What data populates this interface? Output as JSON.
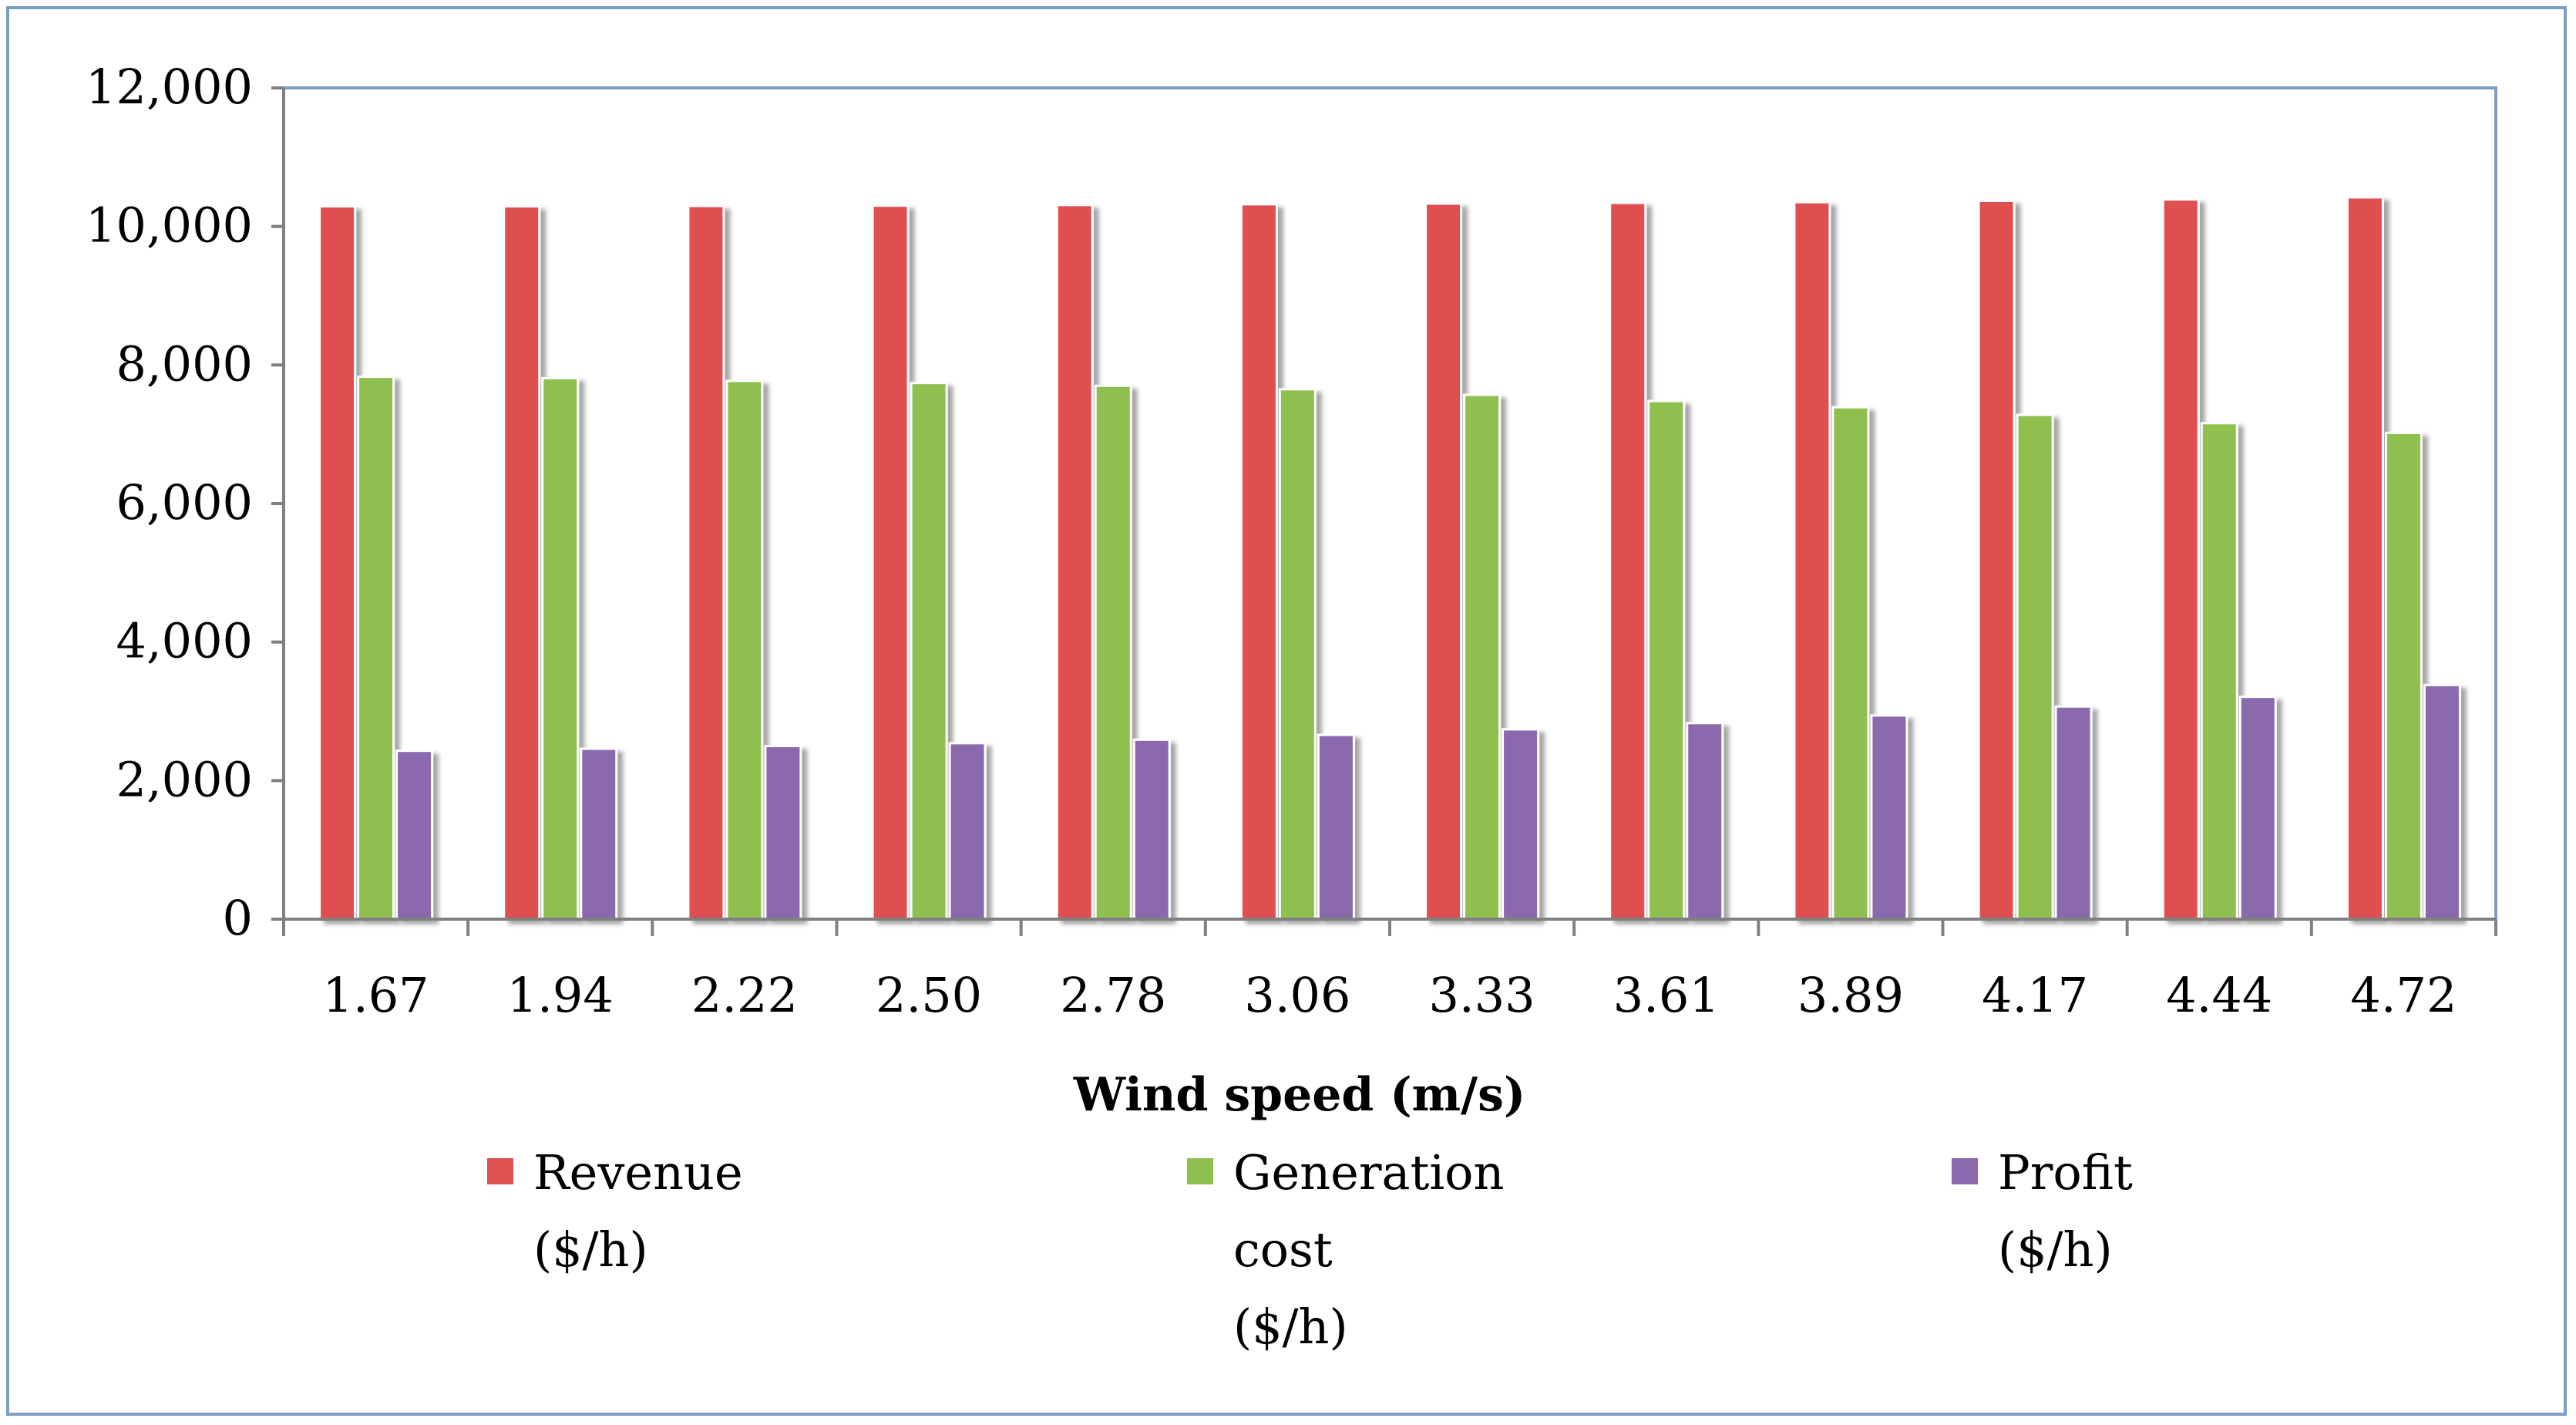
{
  "chart_data": {
    "type": "bar",
    "title": "",
    "xlabel": "Wind speed (m/s)",
    "ylabel": "",
    "ylim": [
      0,
      12000
    ],
    "yticks": [
      0,
      2000,
      4000,
      6000,
      8000,
      10000,
      12000
    ],
    "ytick_labels": [
      "0",
      "2,000",
      "4,000",
      "6,000",
      "8,000",
      "10,000",
      "12,000"
    ],
    "categories": [
      "1.67",
      "1.94",
      "2.22",
      "2.50",
      "2.78",
      "3.06",
      "3.33",
      "3.61",
      "3.89",
      "4.17",
      "4.44",
      "4.72"
    ],
    "grid": false,
    "legend_position": "bottom",
    "series": [
      {
        "name": "Revenue ($/h)",
        "legend_lines": [
          "Revenue",
          "($/h)"
        ],
        "color": "#e05050",
        "values": [
          10290,
          10290,
          10295,
          10300,
          10310,
          10320,
          10330,
          10340,
          10350,
          10370,
          10390,
          10420
        ]
      },
      {
        "name": "Generation cost ($/h)",
        "legend_lines": [
          "Generation",
          "cost",
          "($/h)"
        ],
        "color": "#8fbf4f",
        "values": [
          7830,
          7810,
          7770,
          7740,
          7700,
          7650,
          7570,
          7480,
          7390,
          7280,
          7160,
          7020
        ]
      },
      {
        "name": "Profit ($/h)",
        "legend_lines": [
          "Profit",
          "($/h)"
        ],
        "color": "#8a6aad",
        "values": [
          2430,
          2460,
          2500,
          2540,
          2590,
          2660,
          2740,
          2830,
          2940,
          3070,
          3210,
          3380
        ]
      }
    ]
  }
}
